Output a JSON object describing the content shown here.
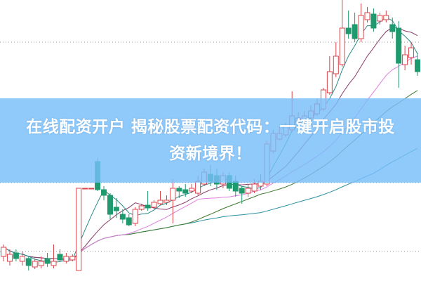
{
  "headline": {
    "line1": "在线配资开户 揭秘股票配资代码：一键开启股市投",
    "line2": "资新境界！"
  },
  "chart_data": {
    "type": "candlestick",
    "title": "",
    "xlabel": "",
    "ylabel": "",
    "axes_visible": false,
    "grid": "dotted horizontal",
    "colors": {
      "up": "#d9434a",
      "down": "#1f9a6e",
      "ma5": "#2a8a8a",
      "ma10": "#8a3b6b",
      "ma20": "#e07de0",
      "ma30": "#3f7a2f",
      "ma60": "#2a8fa0",
      "banner": "#78befa"
    },
    "moving_averages": [
      5,
      10,
      20,
      30,
      60
    ],
    "candles_ohlc": [
      [
        8.75,
        12,
        13,
        7
      ],
      [
        7,
        9.5,
        11.25,
        5.5
      ],
      [
        10,
        8,
        11.25,
        7
      ],
      [
        7,
        8.75,
        10.5,
        5.5
      ],
      [
        8,
        5.5,
        8.75,
        3.75
      ],
      [
        5,
        7,
        8,
        4.25
      ],
      [
        5.5,
        7,
        8.75,
        4.5
      ],
      [
        8,
        6.25,
        10,
        5
      ],
      [
        5.5,
        7,
        13,
        4.5
      ],
      [
        9.5,
        7.5,
        11.25,
        7
      ],
      [
        7,
        8.75,
        10,
        6.25
      ],
      [
        7.5,
        8.75,
        9.5,
        7
      ],
      [
        3.75,
        33,
        33,
        3.75
      ],
      [
        33,
        33,
        33,
        33
      ],
      [
        33,
        33,
        33,
        33
      ],
      [
        42.5,
        32.5,
        43.75,
        32
      ],
      [
        32.5,
        30.5,
        33.75,
        28.75
      ],
      [
        30.5,
        23.75,
        31.25,
        22
      ],
      [
        26.25,
        25,
        29.5,
        22.5
      ],
      [
        23.75,
        22,
        25.5,
        20.5
      ],
      [
        22.5,
        20,
        23.75,
        19.5
      ],
      [
        20.5,
        25.5,
        26.25,
        19.5
      ],
      [
        25.5,
        26.75,
        27.5,
        25
      ],
      [
        27,
        26,
        32,
        25
      ],
      [
        26.25,
        28,
        28.75,
        25.5
      ],
      [
        27.5,
        28.75,
        32,
        27
      ],
      [
        28,
        28.75,
        30.5,
        27
      ],
      [
        28.75,
        33,
        36.25,
        20.5
      ],
      [
        33,
        32,
        33.75,
        29.5
      ],
      [
        32.5,
        31.25,
        34.5,
        30
      ],
      [
        32,
        33,
        34.5,
        31.25
      ],
      [
        31.25,
        35.5,
        37.5,
        30.5
      ],
      [
        34.5,
        38.75,
        40,
        33.75
      ],
      [
        38,
        35.5,
        41.25,
        33.75
      ],
      [
        37.5,
        34.5,
        40,
        32.5
      ],
      [
        34.5,
        37.5,
        38.75,
        33
      ],
      [
        37.5,
        33,
        38.75,
        32
      ],
      [
        35.5,
        32,
        37.5,
        30
      ],
      [
        33,
        31.25,
        33.75,
        27.5
      ],
      [
        31.25,
        33,
        34.5,
        30
      ],
      [
        32,
        34.5,
        36.25,
        31.25
      ],
      [
        33.75,
        35.5,
        38,
        32.5
      ],
      [
        34.5,
        48.75,
        50,
        33.75
      ],
      [
        46.25,
        52.5,
        53.75,
        45.5
      ],
      [
        50.5,
        52.5,
        55,
        50
      ],
      [
        52,
        55,
        56.25,
        51.25
      ],
      [
        53.75,
        58.75,
        67.5,
        53
      ],
      [
        56.25,
        58,
        60,
        55.5
      ],
      [
        57,
        58.75,
        60.5,
        56.25
      ],
      [
        58,
        60.5,
        62.5,
        57
      ],
      [
        59.5,
        63,
        65,
        58.75
      ],
      [
        61.25,
        68,
        68.75,
        60.5
      ],
      [
        67,
        74.5,
        80,
        66.25
      ],
      [
        73.75,
        80,
        85,
        72.5
      ],
      [
        77,
        90,
        100,
        76.25
      ],
      [
        90,
        88,
        96.25,
        86.25
      ],
      [
        91.25,
        86.25,
        95.5,
        85
      ],
      [
        86.25,
        94.5,
        98.75,
        85
      ],
      [
        93,
        95.5,
        97.5,
        92
      ],
      [
        95,
        90,
        97,
        88.75
      ],
      [
        92.5,
        94.5,
        95.5,
        91.25
      ],
      [
        93,
        94.5,
        96.25,
        92
      ],
      [
        91.25,
        88.75,
        93.75,
        86.25
      ],
      [
        90,
        77.5,
        92.5,
        68.75
      ],
      [
        77,
        80.5,
        83.75,
        75
      ],
      [
        79.5,
        83,
        85,
        77
      ],
      [
        78.75,
        74.5,
        81.25,
        73
      ]
    ]
  }
}
